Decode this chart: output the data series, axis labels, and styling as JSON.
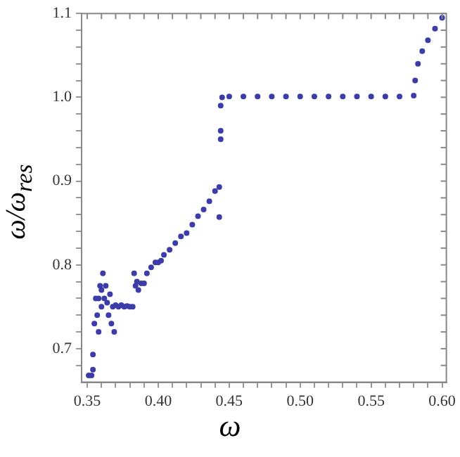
{
  "chart_data": {
    "type": "scatter",
    "xlabel": "ω",
    "ylabel": "ω/ω$_{res}$",
    "marker": "circle",
    "grid": false,
    "legend": false,
    "xlim": [
      0.346,
      0.603
    ],
    "ylim": [
      0.66,
      1.1
    ],
    "xticks": [
      0.35,
      {
        "value": 0.36,
        "label": null
      },
      {
        "value": 0.37,
        "label": null
      },
      {
        "value": 0.38,
        "label": null
      },
      {
        "value": 0.39,
        "label": null
      },
      {
        "value": 0.4,
        "label": "0.40"
      },
      {
        "value": 0.41,
        "label": null
      },
      {
        "value": 0.42,
        "label": null
      },
      {
        "value": 0.43,
        "label": null
      },
      {
        "value": 0.44,
        "label": null
      },
      0.45,
      {
        "value": 0.46,
        "label": null
      },
      {
        "value": 0.47,
        "label": null
      },
      {
        "value": 0.48,
        "label": null
      },
      {
        "value": 0.49,
        "label": null
      },
      {
        "value": 0.5,
        "label": "0.50"
      },
      {
        "value": 0.51,
        "label": null
      },
      {
        "value": 0.52,
        "label": null
      },
      {
        "value": 0.53,
        "label": null
      },
      {
        "value": 0.54,
        "label": null
      },
      0.55,
      {
        "value": 0.56,
        "label": null
      },
      {
        "value": 0.57,
        "label": null
      },
      {
        "value": 0.58,
        "label": null
      },
      {
        "value": 0.59,
        "label": null
      },
      {
        "value": 0.6,
        "label": "0.60"
      }
    ],
    "yticks": [
      {
        "value": 0.68,
        "label": null
      },
      0.7,
      {
        "value": 0.72,
        "label": null
      },
      {
        "value": 0.74,
        "label": null
      },
      {
        "value": 0.76,
        "label": null
      },
      {
        "value": 0.78,
        "label": null
      },
      0.8,
      {
        "value": 0.82,
        "label": null
      },
      {
        "value": 0.84,
        "label": null
      },
      {
        "value": 0.86,
        "label": null
      },
      {
        "value": 0.88,
        "label": null
      },
      0.9,
      {
        "value": 0.92,
        "label": null
      },
      {
        "value": 0.94,
        "label": null
      },
      {
        "value": 0.96,
        "label": null
      },
      {
        "value": 0.98,
        "label": null
      },
      {
        "value": 1.0,
        "label": "1.0"
      },
      {
        "value": 1.02,
        "label": null
      },
      {
        "value": 1.04,
        "label": null
      },
      {
        "value": 1.06,
        "label": null
      },
      {
        "value": 1.08,
        "label": null
      },
      1.1
    ],
    "series": [
      {
        "color": "#3c3ca8",
        "x": [
          0.351,
          0.353,
          0.354,
          0.354,
          0.355,
          0.356,
          0.357,
          0.358,
          0.358,
          0.359,
          0.36,
          0.36,
          0.361,
          0.362,
          0.363,
          0.364,
          0.365,
          0.366,
          0.367,
          0.368,
          0.369,
          0.37,
          0.372,
          0.374,
          0.376,
          0.378,
          0.38,
          0.382,
          0.383,
          0.384,
          0.385,
          0.386,
          0.388,
          0.39,
          0.392,
          0.395,
          0.398,
          0.4,
          0.402,
          0.404,
          0.408,
          0.412,
          0.416,
          0.42,
          0.424,
          0.428,
          0.432,
          0.436,
          0.44,
          0.443,
          0.443,
          0.444,
          0.444,
          0.444,
          0.445,
          0.45,
          0.46,
          0.47,
          0.48,
          0.49,
          0.5,
          0.51,
          0.52,
          0.53,
          0.54,
          0.55,
          0.56,
          0.57,
          0.58,
          0.581,
          0.583,
          0.586,
          0.59,
          0.595,
          0.6
        ],
        "values": [
          0.668,
          0.668,
          0.675,
          0.693,
          0.73,
          0.76,
          0.74,
          0.72,
          0.76,
          0.775,
          0.77,
          0.75,
          0.79,
          0.76,
          0.775,
          0.755,
          0.74,
          0.765,
          0.73,
          0.75,
          0.72,
          0.752,
          0.75,
          0.752,
          0.75,
          0.751,
          0.75,
          0.75,
          0.79,
          0.775,
          0.78,
          0.77,
          0.778,
          0.778,
          0.79,
          0.797,
          0.803,
          0.803,
          0.805,
          0.812,
          0.818,
          0.826,
          0.834,
          0.838,
          0.848,
          0.858,
          0.866,
          0.876,
          0.888,
          0.893,
          0.857,
          0.95,
          0.96,
          0.99,
          1.0,
          1.001,
          1.001,
          1.001,
          1.001,
          1.001,
          1.001,
          1.001,
          1.001,
          1.001,
          1.001,
          1.001,
          1.001,
          1.001,
          1.002,
          1.02,
          1.04,
          1.055,
          1.068,
          1.082,
          1.095
        ]
      }
    ]
  }
}
